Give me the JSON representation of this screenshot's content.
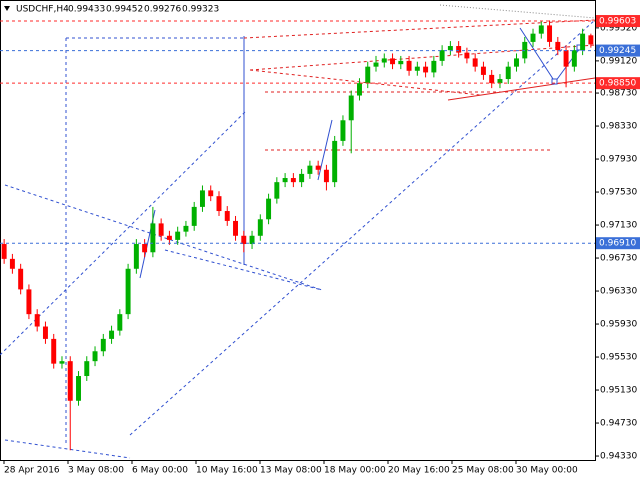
{
  "chart_data": {
    "type": "candlestick",
    "symbol": "USDCHF,H4",
    "header_values": [
      0.99433,
      0.99452,
      0.99276,
      0.99323
    ],
    "up_color": "#00b000",
    "down_color": "#ff0000",
    "ylim": [
      0.94282,
      0.99858
    ],
    "yticks": [
      {
        "value": 0.9952,
        "label": "0.99520"
      },
      {
        "value": 0.9912,
        "label": "0.99120"
      },
      {
        "value": 0.9873,
        "label": "0.98730"
      },
      {
        "value": 0.9833,
        "label": "0.98330"
      },
      {
        "value": 0.9793,
        "label": "0.97930"
      },
      {
        "value": 0.9753,
        "label": "0.97530"
      },
      {
        "value": 0.9713,
        "label": "0.97130"
      },
      {
        "value": 0.9673,
        "label": "0.96730"
      },
      {
        "value": 0.9633,
        "label": "0.96330"
      },
      {
        "value": 0.9593,
        "label": "0.95930"
      },
      {
        "value": 0.9553,
        "label": "0.95530"
      },
      {
        "value": 0.9513,
        "label": "0.95130"
      },
      {
        "value": 0.9473,
        "label": "0.94730"
      },
      {
        "value": 0.9433,
        "label": "0.94330"
      }
    ],
    "levels": [
      {
        "price": 0.99603,
        "color": "#ff2a2a"
      },
      {
        "price": 0.99245,
        "color": "#3a6fd8"
      },
      {
        "price": {
          "value": 0.9885,
          "label": "0.98850"
        },
        "color": "#ff2a2a"
      },
      {
        "price": {
          "value": 0.9691,
          "label": "0.96910"
        },
        "color": "#3a6fd8"
      }
    ],
    "x_labels": [
      "28 Apr 2016",
      "3 May 08:00",
      "6 May 00:00",
      "10 May 16:00",
      "13 May 08:00",
      "18 May 00:00",
      "20 May 16:00",
      "25 May 08:00",
      "30 May 00:00"
    ],
    "candles": [
      [
        0.969,
        0.9696,
        0.9666,
        0.9672
      ],
      [
        0.9672,
        0.9678,
        0.9654,
        0.966
      ],
      [
        0.966,
        0.9666,
        0.9629,
        0.9635
      ],
      [
        0.9635,
        0.9641,
        0.9599,
        0.9605
      ],
      [
        0.9605,
        0.9611,
        0.9584,
        0.959
      ],
      [
        0.959,
        0.9596,
        0.9569,
        0.9575
      ],
      [
        0.9575,
        0.9581,
        0.9539,
        0.9545
      ],
      [
        0.9545,
        0.9554,
        0.9539,
        0.9548
      ],
      [
        0.9548,
        0.9554,
        0.944,
        0.95
      ],
      [
        0.95,
        0.9536,
        0.9494,
        0.953
      ],
      [
        0.953,
        0.9554,
        0.9524,
        0.9548
      ],
      [
        0.9548,
        0.9566,
        0.9542,
        0.956
      ],
      [
        0.956,
        0.9581,
        0.9554,
        0.9575
      ],
      [
        0.9575,
        0.9591,
        0.9569,
        0.9585
      ],
      [
        0.9585,
        0.9611,
        0.9579,
        0.9605
      ],
      [
        0.9605,
        0.9666,
        0.9599,
        0.966
      ],
      [
        0.966,
        0.9696,
        0.9654,
        0.969
      ],
      [
        0.969,
        0.9696,
        0.9674,
        0.968
      ],
      [
        0.968,
        0.9735,
        0.9674,
        0.9715
      ],
      [
        0.9715,
        0.9721,
        0.9694,
        0.97
      ],
      [
        0.97,
        0.9706,
        0.9689,
        0.9695
      ],
      [
        0.9695,
        0.9711,
        0.9689,
        0.9705
      ],
      [
        0.9705,
        0.9718,
        0.9699,
        0.9712
      ],
      [
        0.9712,
        0.9741,
        0.9706,
        0.9735
      ],
      [
        0.9735,
        0.9761,
        0.9729,
        0.9755
      ],
      [
        0.9755,
        0.9761,
        0.9742,
        0.9748
      ],
      [
        0.9748,
        0.9754,
        0.9724,
        0.973
      ],
      [
        0.973,
        0.9736,
        0.9712,
        0.9718
      ],
      [
        0.9718,
        0.9724,
        0.9694,
        0.97
      ],
      [
        0.97,
        0.9706,
        0.968,
        0.969
      ],
      [
        0.969,
        0.9706,
        0.9684,
        0.97
      ],
      [
        0.97,
        0.9726,
        0.9694,
        0.972
      ],
      [
        0.972,
        0.9751,
        0.9714,
        0.9745
      ],
      [
        0.9745,
        0.9771,
        0.9739,
        0.9765
      ],
      [
        0.9765,
        0.9776,
        0.9759,
        0.977
      ],
      [
        0.977,
        0.9776,
        0.9759,
        0.9765
      ],
      [
        0.9765,
        0.9781,
        0.9759,
        0.9775
      ],
      [
        0.9775,
        0.9791,
        0.9769,
        0.9785
      ],
      [
        0.9785,
        0.9791,
        0.9774,
        0.978
      ],
      [
        0.978,
        0.9786,
        0.9755,
        0.9765
      ],
      [
        0.9765,
        0.9821,
        0.9759,
        0.9815
      ],
      [
        0.9815,
        0.9846,
        0.9809,
        0.984
      ],
      [
        0.984,
        0.9876,
        0.98,
        0.987
      ],
      [
        0.987,
        0.9891,
        0.9864,
        0.9885
      ],
      [
        0.9885,
        0.9911,
        0.9879,
        0.9905
      ],
      [
        0.9905,
        0.9918,
        0.9899,
        0.991
      ],
      [
        0.991,
        0.9921,
        0.9904,
        0.9915
      ],
      [
        0.9915,
        0.9921,
        0.9902,
        0.9908
      ],
      [
        0.9908,
        0.9918,
        0.9902,
        0.9912
      ],
      [
        0.9912,
        0.9918,
        0.9894,
        0.99
      ],
      [
        0.99,
        0.9911,
        0.9894,
        0.9905
      ],
      [
        0.9905,
        0.9911,
        0.9892,
        0.9898
      ],
      [
        0.9898,
        0.9918,
        0.9892,
        0.9912
      ],
      [
        0.9912,
        0.9931,
        0.9906,
        0.9925
      ],
      [
        0.9925,
        0.9936,
        0.9919,
        0.993
      ],
      [
        0.993,
        0.9936,
        0.9916,
        0.9922
      ],
      [
        0.9922,
        0.9928,
        0.9909,
        0.9915
      ],
      [
        0.9915,
        0.9921,
        0.9899,
        0.9905
      ],
      [
        0.9905,
        0.9911,
        0.9889,
        0.9895
      ],
      [
        0.9895,
        0.9901,
        0.9879,
        0.9885
      ],
      [
        0.9885,
        0.9896,
        0.9879,
        0.989
      ],
      [
        0.989,
        0.9911,
        0.9884,
        0.9905
      ],
      [
        0.9905,
        0.9921,
        0.9899,
        0.9915
      ],
      [
        0.9915,
        0.9941,
        0.9909,
        0.9935
      ],
      [
        0.9935,
        0.9951,
        0.9929,
        0.9945
      ],
      [
        0.9945,
        0.996,
        0.9939,
        0.9955
      ],
      [
        0.9955,
        0.9961,
        0.9929,
        0.9935
      ],
      [
        0.9935,
        0.9941,
        0.9919,
        0.9925
      ],
      [
        0.9925,
        0.9931,
        0.988,
        0.9905
      ],
      [
        0.9905,
        0.9931,
        0.9899,
        0.9925
      ],
      [
        0.9925,
        0.9951,
        0.9919,
        0.9945
      ],
      [
        0.9943,
        0.9945,
        0.9928,
        0.9932
      ]
    ]
  }
}
